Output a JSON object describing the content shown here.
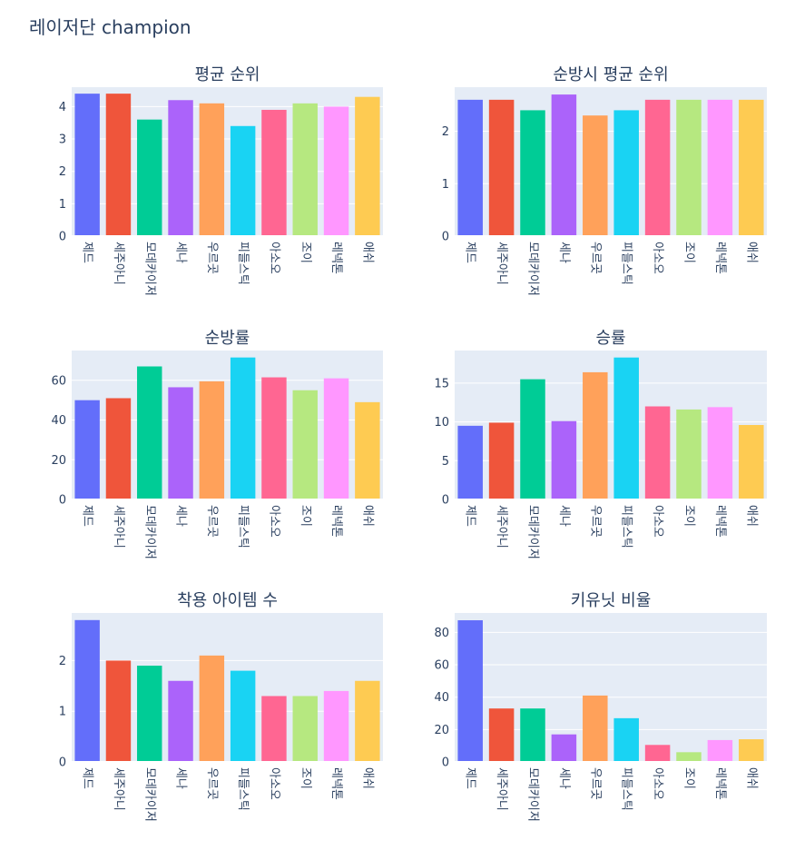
{
  "page_title": "레이저단 champion",
  "colors": {
    "plot_bg": "#e5ecf6",
    "grid": "#ffffff",
    "text": "#2a3f5f",
    "bars": [
      "#636efa",
      "#ef553b",
      "#00cc96",
      "#ab63fa",
      "#ffa15a",
      "#19d3f3",
      "#ff6692",
      "#b6e880",
      "#ff97ff",
      "#fecb52"
    ]
  },
  "chart_data": [
    {
      "type": "bar",
      "title": "평균 순위",
      "categories": [
        "제드",
        "세주아니",
        "모데카이저",
        "세나",
        "우르곳",
        "피들스틱",
        "아소오",
        "조이",
        "레넥톤",
        "애쉬"
      ],
      "values": [
        4.4,
        4.4,
        3.6,
        4.2,
        4.1,
        3.4,
        3.9,
        4.1,
        4.0,
        4.3
      ],
      "ylim": [
        0,
        4.6
      ],
      "yticks": [
        0,
        1,
        2,
        3,
        4
      ]
    },
    {
      "type": "bar",
      "title": "순방시 평균 순위",
      "categories": [
        "제드",
        "세주아니",
        "모데카이저",
        "세나",
        "우르곳",
        "피들스틱",
        "아소오",
        "조이",
        "레넥톤",
        "애쉬"
      ],
      "values": [
        2.6,
        2.6,
        2.4,
        2.7,
        2.3,
        2.4,
        2.6,
        2.6,
        2.6,
        2.6
      ],
      "ylim": [
        0,
        2.84
      ],
      "yticks": [
        0,
        1,
        2
      ]
    },
    {
      "type": "bar",
      "title": "순방률",
      "categories": [
        "제드",
        "세주아니",
        "모데카이저",
        "세나",
        "우르곳",
        "피들스틱",
        "아소오",
        "조이",
        "레넥톤",
        "애쉬"
      ],
      "values": [
        50,
        51,
        67,
        56.5,
        59.5,
        71.5,
        61.5,
        55,
        61,
        49
      ],
      "ylim": [
        0,
        75
      ],
      "yticks": [
        0,
        20,
        40,
        60
      ]
    },
    {
      "type": "bar",
      "title": "승률",
      "categories": [
        "제드",
        "세주아니",
        "모데카이저",
        "세나",
        "우르곳",
        "피들스틱",
        "아소오",
        "조이",
        "레넥톤",
        "애쉬"
      ],
      "values": [
        9.5,
        9.9,
        15.5,
        10.1,
        16.4,
        18.3,
        12.0,
        11.6,
        11.9,
        9.6
      ],
      "ylim": [
        0,
        19.2
      ],
      "yticks": [
        0,
        5,
        10,
        15
      ]
    },
    {
      "type": "bar",
      "title": "착용 아이템 수",
      "categories": [
        "제드",
        "세주아니",
        "모데카이저",
        "세나",
        "우르곳",
        "피들스틱",
        "아소오",
        "조이",
        "레넥톤",
        "애쉬"
      ],
      "values": [
        2.8,
        2.0,
        1.9,
        1.6,
        2.1,
        1.8,
        1.3,
        1.3,
        1.4,
        1.6
      ],
      "ylim": [
        0,
        2.94
      ],
      "yticks": [
        0,
        1,
        2
      ]
    },
    {
      "type": "bar",
      "title": "키유닛 비율",
      "categories": [
        "제드",
        "세주아니",
        "모데카이저",
        "세나",
        "우르곳",
        "피들스틱",
        "아소오",
        "조이",
        "레넥톤",
        "애쉬"
      ],
      "values": [
        87.5,
        33,
        33,
        17,
        41,
        27,
        10.5,
        6,
        13.5,
        14
      ],
      "ylim": [
        0,
        92
      ],
      "yticks": [
        0,
        20,
        40,
        60,
        80
      ]
    }
  ]
}
